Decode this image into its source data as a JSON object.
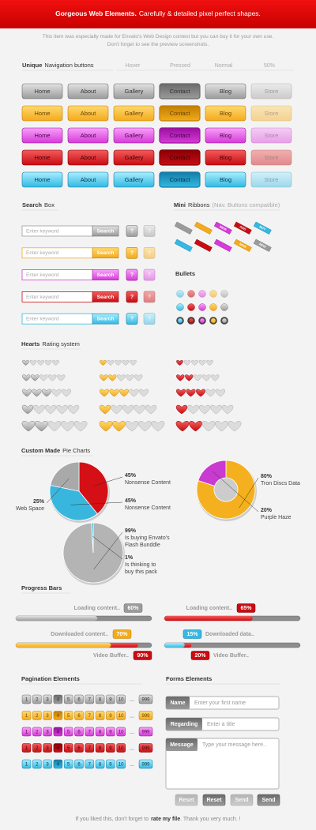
{
  "header": {
    "title": "Gorgeous Web Elements.",
    "subtitle": "Carefully & detailed pixel perfect shapes."
  },
  "intro": [
    "This item was especially made for Envato's Web Design contest but you can buy it for your own use.",
    "Don't forget to see the preview screenshots."
  ],
  "navigation": {
    "title_bold": "Unique",
    "title": "Navigation buttons",
    "states": [
      "Hover",
      "Pressed",
      "Normal",
      "50%"
    ],
    "buttons": [
      "Home",
      "About",
      "Gallery",
      "Contact",
      "Blog",
      "Store"
    ]
  },
  "search": {
    "title_bold": "Search",
    "title": "Box",
    "placeholder": "Enter keyword",
    "button": "Search",
    "help": "?"
  },
  "ribbons": {
    "title_bold": "Mini",
    "title": "Ribbons",
    "note": "(Nav. Buttons compatible)",
    "labels": [
      "NEW",
      "ADD",
      "BUY",
      "NEW",
      "NEW"
    ]
  },
  "bullets": {
    "title": "Bullets"
  },
  "hearts": {
    "title_bold": "Hearts",
    "title": "Rating system"
  },
  "pies": {
    "title_bold": "Custom Made",
    "title": "Pie Charts",
    "charts": [
      {
        "slices": [
          {
            "value": 45,
            "value_label": "45%",
            "name": [
              "Nonsense Content"
            ]
          },
          {
            "value": 45,
            "value_label": "45%",
            "name": [
              "Nonsense Content"
            ]
          },
          {
            "value": 25,
            "value_label": "25%",
            "name": [
              "Web Space"
            ]
          }
        ]
      },
      {
        "slices": [
          {
            "value": 80,
            "value_label": "80%",
            "name": [
              "Tron Discs Data"
            ]
          },
          {
            "value": 20,
            "value_label": "20%",
            "name": [
              "Purple Haze"
            ]
          }
        ]
      },
      {
        "slices": [
          {
            "value": 99,
            "value_label": "99%",
            "name": [
              "Is buying Envato's",
              "Flash Bunddle"
            ]
          },
          {
            "value": 1,
            "value_label": "1%",
            "name": [
              "Is thinking to",
              "buy this pack"
            ]
          }
        ]
      }
    ]
  },
  "progress": {
    "title": "Progress Bars",
    "bars": [
      {
        "label": "Loading content..",
        "value": 60,
        "value_label": "60%"
      },
      {
        "label": "Loading content..",
        "value": 65,
        "value_label": "65%"
      },
      {
        "label": "Downloaded content..",
        "value": 70,
        "value_label": "70%"
      },
      {
        "label": "Downloaded data..",
        "value": 15,
        "value_label": "15%"
      },
      {
        "label": "Video Buffer..",
        "value": 90,
        "value_label": "90%"
      },
      {
        "label": "Video Buffer..",
        "value": 20,
        "value_label": "20%"
      }
    ]
  },
  "pagination": {
    "title": "Pagination Elements",
    "pages": [
      "1",
      "2",
      "3",
      "4",
      "5",
      "6",
      "7",
      "8",
      "9",
      "10",
      "...",
      "999"
    ]
  },
  "forms": {
    "title": "Forms Elements",
    "fields": [
      {
        "label": "Name",
        "placeholder": "Enter your first name"
      },
      {
        "label": "Regarding",
        "placeholder": "Enter a title"
      },
      {
        "label": "Message",
        "placeholder": "Type your message here.."
      }
    ],
    "buttons": [
      "Reset",
      "Reset",
      "Send",
      "Send"
    ]
  },
  "footer": {
    "before": "If you liked this, don't forget to",
    "link": "rate my file",
    "after": ". Thank you very much. !"
  }
}
